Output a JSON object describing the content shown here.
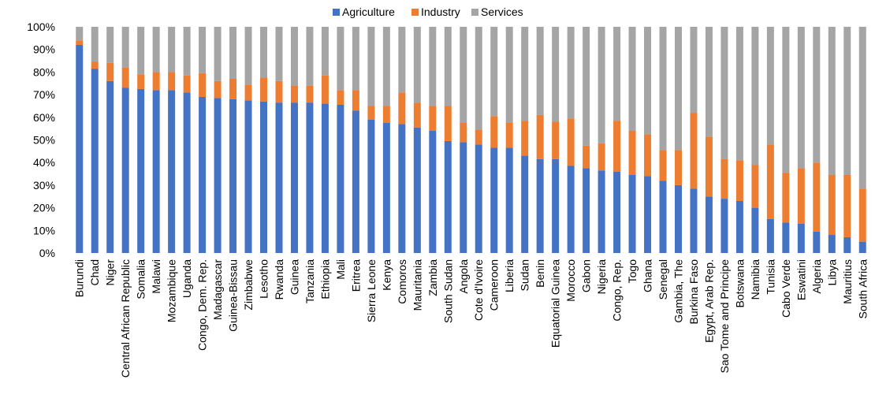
{
  "chart_data": {
    "type": "bar",
    "stacked": true,
    "title": "",
    "xlabel": "",
    "ylabel": "",
    "ylim": [
      0,
      100
    ],
    "y_tick_labels": [
      "0%",
      "10%",
      "20%",
      "30%",
      "40%",
      "50%",
      "60%",
      "70%",
      "80%",
      "90%",
      "100%"
    ],
    "legend_position": "top",
    "grid": false,
    "categories": [
      "Burundi",
      "Chad",
      "Niger",
      "Central African Republic",
      "Somalia",
      "Malawi",
      "Mozambique",
      "Uganda",
      "Congo, Dem. Rep.",
      "Madagascar",
      "Guinea-Bissau",
      "Zimbabwe",
      "Lesotho",
      "Rwanda",
      "Guinea",
      "Tanzania",
      "Ethiopia",
      "Mali",
      "Eritrea",
      "Sierra Leone",
      "Kenya",
      "Comoros",
      "Mauritania",
      "Zambia",
      "South Sudan",
      "Angola",
      "Cote d'Ivoire",
      "Cameroon",
      "Liberia",
      "Sudan",
      "Benin",
      "Equatorial Guinea",
      "Morocco",
      "Gabon",
      "Nigeria",
      "Congo, Rep.",
      "Togo",
      "Ghana",
      "Senegal",
      "Gambia, The",
      "Burkina Faso",
      "Egypt, Arab Rep.",
      "Sao Tome and Principe",
      "Botswana",
      "Namibia",
      "Tunisia",
      "Cabo Verde",
      "Eswatini",
      "Algeria",
      "Libya",
      "Mauritius",
      "South Africa"
    ],
    "series": [
      {
        "name": "Agriculture",
        "color": "#4472C4",
        "values": [
          92,
          81.5,
          76,
          73,
          72.5,
          72,
          72,
          71,
          69,
          68.5,
          68,
          67.5,
          67,
          66.5,
          66.5,
          66.5,
          66,
          65.5,
          63,
          59,
          57.5,
          57,
          55.5,
          54,
          49.5,
          49,
          48,
          46.5,
          46.5,
          43,
          41.5,
          41.5,
          38.5,
          37.5,
          36.5,
          36,
          34.5,
          34,
          32,
          30,
          28.5,
          25,
          24,
          23,
          20,
          15,
          13.5,
          13,
          9.5,
          8,
          7,
          5
        ]
      },
      {
        "name": "Industry",
        "color": "#ED7D31",
        "values": [
          2,
          3,
          8,
          9,
          6.5,
          8,
          8,
          7.5,
          10.5,
          7.5,
          9,
          7,
          10.5,
          9.5,
          7.5,
          7.5,
          12.5,
          6.5,
          9,
          6,
          7.5,
          14,
          11,
          11,
          15.5,
          8.5,
          6.5,
          14,
          11,
          15.5,
          19.5,
          16.5,
          21,
          10,
          12,
          22.5,
          19.5,
          18.5,
          13.5,
          15.5,
          33.5,
          26.5,
          17.5,
          18,
          19,
          33,
          22,
          24.5,
          30.5,
          26.5,
          27.5,
          23.5
        ]
      },
      {
        "name": "Services",
        "color": "#A5A5A5",
        "values": [
          6,
          15.5,
          16,
          18,
          21,
          20,
          20,
          21.5,
          20.5,
          24,
          23,
          25.5,
          22.5,
          24,
          26,
          26,
          21.5,
          28,
          28,
          35,
          35,
          29,
          33.5,
          35,
          35,
          42.5,
          45.5,
          39.5,
          42.5,
          41.5,
          39,
          42,
          40.5,
          52.5,
          51.5,
          41.5,
          46,
          47.5,
          54.5,
          54.5,
          38,
          48.5,
          58.5,
          59,
          61,
          52,
          64.5,
          62.5,
          60,
          65.5,
          65.5,
          71.5
        ]
      }
    ]
  }
}
